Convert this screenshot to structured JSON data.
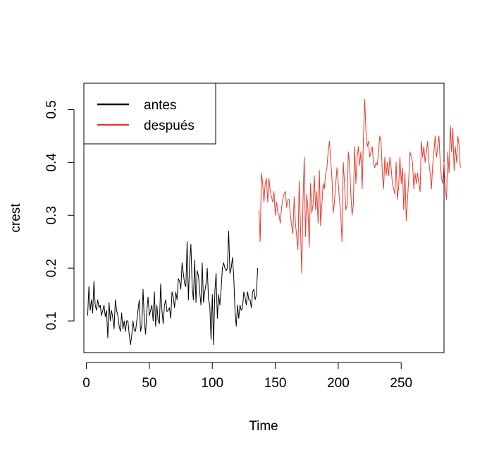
{
  "chart_data": {
    "type": "line",
    "title": "",
    "xlabel": "Time",
    "ylabel": "crest",
    "xlim": [
      -2,
      284
    ],
    "ylim": [
      0.04,
      0.55
    ],
    "x_ticks": [
      0,
      50,
      100,
      150,
      200,
      250
    ],
    "x_tick_labels": [
      "0",
      "50",
      "100",
      "150",
      "200",
      "250"
    ],
    "y_ticks": [
      0.1,
      0.2,
      0.3,
      0.4,
      0.5
    ],
    "y_tick_labels": [
      "0.1",
      "0.2",
      "0.3",
      "0.4",
      "0.5"
    ],
    "grid": false,
    "legend_position": "top-left",
    "series": [
      {
        "name": "antes",
        "color": "#000000",
        "x_start": 1,
        "values": [
          0.11,
          0.165,
          0.12,
          0.14,
          0.115,
          0.175,
          0.13,
          0.12,
          0.14,
          0.125,
          0.13,
          0.11,
          0.12,
          0.13,
          0.108,
          0.12,
          0.068,
          0.135,
          0.1,
          0.12,
          0.105,
          0.085,
          0.14,
          0.12,
          0.11,
          0.09,
          0.08,
          0.115,
          0.085,
          0.1,
          0.08,
          0.1,
          0.1,
          0.075,
          0.055,
          0.072,
          0.1,
          0.082,
          0.08,
          0.1,
          0.12,
          0.14,
          0.08,
          0.092,
          0.16,
          0.1,
          0.075,
          0.12,
          0.145,
          0.11,
          0.12,
          0.13,
          0.1,
          0.155,
          0.09,
          0.13,
          0.1,
          0.095,
          0.17,
          0.12,
          0.095,
          0.13,
          0.14,
          0.118,
          0.12,
          0.125,
          0.105,
          0.155,
          0.145,
          0.125,
          0.155,
          0.14,
          0.18,
          0.175,
          0.16,
          0.21,
          0.19,
          0.17,
          0.165,
          0.25,
          0.14,
          0.21,
          0.245,
          0.165,
          0.14,
          0.215,
          0.135,
          0.195,
          0.185,
          0.155,
          0.13,
          0.21,
          0.135,
          0.155,
          0.17,
          0.2,
          0.14,
          0.13,
          0.065,
          0.15,
          0.055,
          0.155,
          0.19,
          0.105,
          0.15,
          0.13,
          0.16,
          0.2,
          0.21,
          0.2,
          0.195,
          0.2,
          0.27,
          0.19,
          0.2,
          0.22,
          0.185,
          0.12,
          0.09,
          0.13,
          0.105,
          0.13,
          0.12,
          0.125,
          0.155,
          0.145,
          0.13,
          0.155,
          0.14,
          0.14,
          0.125,
          0.155,
          0.16,
          0.14,
          0.15,
          0.2
        ]
      },
      {
        "name": "después",
        "color": "#e83a2e",
        "x_start": 137,
        "values": [
          0.31,
          0.25,
          0.38,
          0.36,
          0.325,
          0.36,
          0.37,
          0.325,
          0.37,
          0.345,
          0.335,
          0.325,
          0.345,
          0.3,
          0.325,
          0.305,
          0.3,
          0.285,
          0.315,
          0.33,
          0.34,
          0.345,
          0.315,
          0.33,
          0.33,
          0.3,
          0.28,
          0.265,
          0.335,
          0.285,
          0.26,
          0.235,
          0.365,
          0.28,
          0.19,
          0.325,
          0.41,
          0.26,
          0.34,
          0.31,
          0.24,
          0.36,
          0.305,
          0.32,
          0.375,
          0.31,
          0.345,
          0.285,
          0.385,
          0.28,
          0.32,
          0.36,
          0.35,
          0.38,
          0.39,
          0.42,
          0.44,
          0.405,
          0.37,
          0.305,
          0.325,
          0.36,
          0.39,
          0.36,
          0.33,
          0.3,
          0.25,
          0.4,
          0.36,
          0.31,
          0.32,
          0.42,
          0.395,
          0.34,
          0.3,
          0.32,
          0.43,
          0.36,
          0.41,
          0.43,
          0.395,
          0.42,
          0.35,
          0.445,
          0.52,
          0.46,
          0.43,
          0.44,
          0.41,
          0.42,
          0.43,
          0.4,
          0.39,
          0.4,
          0.395,
          0.42,
          0.45,
          0.44,
          0.38,
          0.35,
          0.41,
          0.375,
          0.4,
          0.375,
          0.41,
          0.39,
          0.36,
          0.35,
          0.34,
          0.4,
          0.33,
          0.355,
          0.41,
          0.36,
          0.39,
          0.31,
          0.38,
          0.29,
          0.33,
          0.37,
          0.42,
          0.41,
          0.4,
          0.35,
          0.38,
          0.36,
          0.38,
          0.36,
          0.345,
          0.44,
          0.41,
          0.43,
          0.4,
          0.42,
          0.44,
          0.4,
          0.38,
          0.35,
          0.395,
          0.42,
          0.45,
          0.41,
          0.43,
          0.45,
          0.4,
          0.37,
          0.36,
          0.4,
          0.35,
          0.33,
          0.42,
          0.38,
          0.47,
          0.42,
          0.465,
          0.385,
          0.43,
          0.4,
          0.45,
          0.43,
          0.39
        ]
      }
    ]
  }
}
